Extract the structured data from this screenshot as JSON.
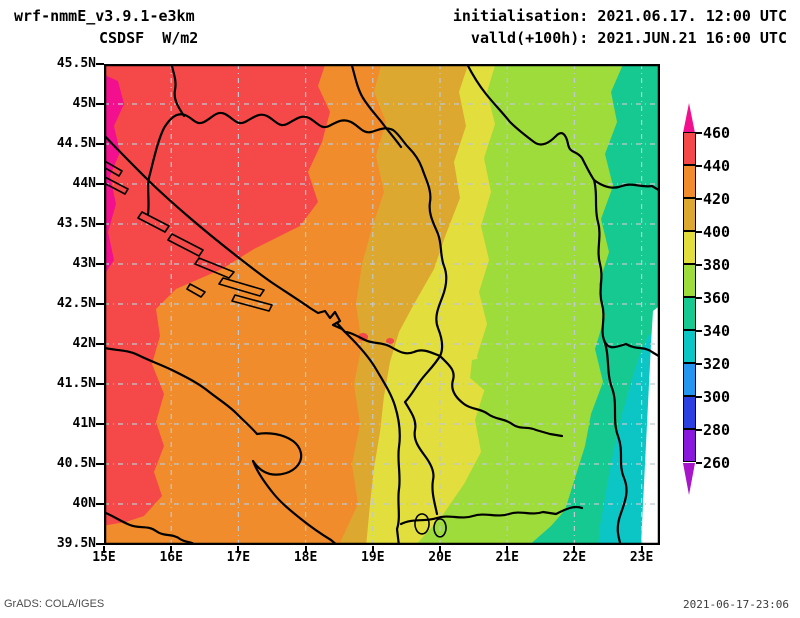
{
  "header": {
    "line1": "wrf-nmmE_v3.9.1-e3km",
    "line2": "CSDSF  W/m2",
    "init": "initialisation: 2021.06.17. 12:00 UTC",
    "valid": "valld(+100h): 2021.JUN.21 16:00 UTC"
  },
  "footer": {
    "grads_credit": "GrADS: COLA/IGES",
    "timestamp": "2021-06-17-23:06"
  },
  "axes": {
    "lat_ticks": [
      "45.5N",
      "45N",
      "44.5N",
      "44N",
      "43.5N",
      "43N",
      "42.5N",
      "42N",
      "41.5N",
      "41N",
      "40.5N",
      "40N",
      "39.5N"
    ],
    "lon_ticks": [
      "15E",
      "16E",
      "17E",
      "18E",
      "19E",
      "20E",
      "21E",
      "22E",
      "23E"
    ]
  },
  "palette": {
    "over_460": "#F2108E",
    "440_460": "#F54949",
    "420_440": "#F18C2C",
    "400_420": "#DCA830",
    "380_400": "#E2DE3E",
    "360_380": "#9EDC3C",
    "340_360": "#16C990",
    "320_340": "#0CC6C6",
    "300_320": "#2496F0",
    "280_300": "#2C3FE0",
    "260_280": "#8A18DC",
    "under_260": "#A716C8",
    "nodata": "#FFFFFF",
    "grid": "#BFC9D1",
    "border": "#000000"
  },
  "colorbar": {
    "labels": [
      "460",
      "440",
      "420",
      "400",
      "380",
      "360",
      "340",
      "320",
      "300",
      "280",
      "260"
    ],
    "segments_top_to_bottom": [
      "440_460",
      "420_440",
      "400_420",
      "380_400",
      "360_380",
      "340_360",
      "320_340",
      "300_320",
      "280_300",
      "260_280"
    ],
    "over_key": "over_460",
    "under_key": "under_260"
  },
  "chart_data": {
    "type": "heatmap",
    "variable": "CSDSF",
    "units": "W/m2",
    "model": "wrf-nmmE_v3.9.1-e3km",
    "initialisation": "2021.06.17. 12:00 UTC",
    "valid": "2021.JUN.21 16:00 UTC (+100h)",
    "x": {
      "label": "longitude",
      "ticks": [
        "15E",
        "16E",
        "17E",
        "18E",
        "19E",
        "20E",
        "21E",
        "22E",
        "23E"
      ],
      "range_deg": [
        15,
        23.3
      ]
    },
    "y": {
      "label": "latitude",
      "ticks": [
        "39.5N",
        "40N",
        "40.5N",
        "41N",
        "41.5N",
        "42N",
        "42.5N",
        "43N",
        "43.5N",
        "44N",
        "44.5N",
        "45N",
        "45.5N"
      ],
      "range_deg": [
        39.5,
        45.5
      ]
    },
    "contour_levels": [
      260,
      280,
      300,
      320,
      340,
      360,
      380,
      400,
      420,
      440,
      460
    ],
    "colors_low_to_high": [
      "#A716C8",
      "#8A18DC",
      "#2C3FE0",
      "#2496F0",
      "#0CC6C6",
      "#16C990",
      "#9EDC3C",
      "#E2DE3E",
      "#DCA830",
      "#F18C2C",
      "#F54949",
      "#F2108E"
    ],
    "legend_position": "right",
    "grid": true,
    "field_summary": "Filled-contour field over the Adriatic/Balkans; values decrease from west to east in roughly north-south bands: >460 W/m2 patch at the NW map edge, 440-460 along the Adriatic, down to 320-340 near 23E; a no-data white strip lies along the far eastern edge.",
    "approx_value_by_longitude": {
      "15E": 455,
      "16E": 440,
      "17E": 425,
      "18E": 410,
      "19E": 395,
      "20E": 382,
      "21E": 372,
      "22E": 352,
      "23E": 335
    }
  }
}
